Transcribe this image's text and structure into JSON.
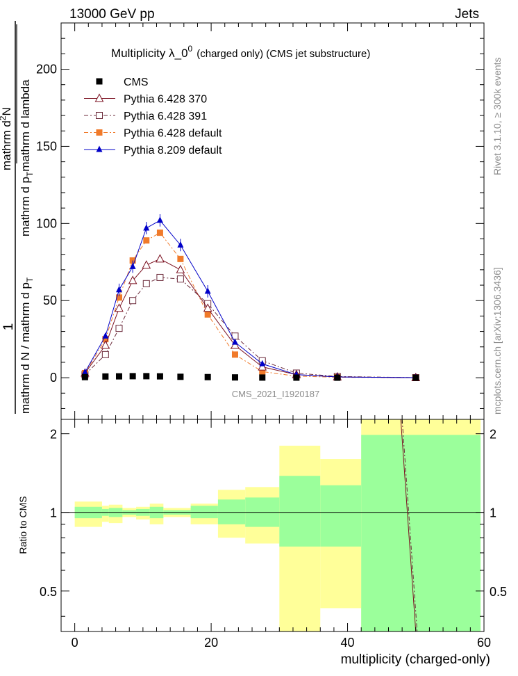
{
  "header": {
    "left": "13000 GeV pp",
    "right": "Jets"
  },
  "side_labels": {
    "top": "Rivet 3.1.10, ≥ 300k events",
    "bottom": "mcplots.cern.ch [arXiv:1306.3436]"
  },
  "chart_data": [
    {
      "type": "line",
      "title_main": "Multiplicity  λ_0",
      "title_sup": "0",
      "title_sub": "(charged only) (CMS jet substructure)",
      "watermark": "CMS_2021_I1920187",
      "ylabel_num": "1",
      "ylabel_den": "mathrm d N / mathrm d p",
      "ylabel_den_sub": "T",
      "ylabel_num2": "mathrm d",
      "ylabel_num2_sup": "2",
      "ylabel_num2_rest": "N",
      "ylabel_den2": "mathrm d p",
      "ylabel_den2_sub": "T",
      "ylabel_den2_rest": "mathrm d lambda",
      "xlim": [
        -2,
        60
      ],
      "ylim": [
        -27,
        230
      ],
      "yticks": [
        0,
        50,
        100,
        150,
        200
      ],
      "ytick_labels": [
        "0",
        "50",
        "100",
        "150",
        "200"
      ],
      "legend_position": "top-left",
      "series": [
        {
          "name": "CMS",
          "color": "#000000",
          "marker": "square-filled",
          "dash": "none",
          "x": [
            1.5,
            4.5,
            6.5,
            8.5,
            10.5,
            12.5,
            15.5,
            19.5,
            23.5,
            27.5,
            32.5,
            38.5,
            50
          ],
          "y": [
            0.4,
            0.8,
            0.9,
            1.0,
            1.0,
            0.9,
            0.6,
            0.4,
            0.2,
            0.1,
            0.05,
            0.02,
            0.002
          ]
        },
        {
          "name": "Pythia 6.428 370",
          "color": "#7b1020",
          "marker": "triangle-open",
          "dash": "none",
          "x": [
            1.5,
            4.5,
            6.5,
            8.5,
            10.5,
            12.5,
            15.5,
            19.5,
            23.5,
            27.5,
            32.5,
            38.5,
            50
          ],
          "y": [
            3,
            21,
            45,
            63,
            73,
            77,
            70,
            45,
            21,
            7,
            2,
            0.5,
            0.05
          ]
        },
        {
          "name": "Pythia 6.428 391",
          "color": "#6b2a3a",
          "marker": "square-open",
          "dash": "6,3,2,3",
          "x": [
            1.5,
            4.5,
            6.5,
            8.5,
            10.5,
            12.5,
            15.5,
            19.5,
            23.5,
            27.5,
            32.5,
            38.5,
            50
          ],
          "y": [
            2,
            15,
            32,
            50,
            61,
            65,
            64,
            48,
            27,
            11,
            3,
            0.8,
            0.05
          ]
        },
        {
          "name": "Pythia 6.428 default",
          "color": "#f07a2a",
          "marker": "square-filled",
          "dash": "6,3,2,3",
          "x": [
            1.5,
            4.5,
            6.5,
            8.5,
            10.5,
            12.5,
            15.5,
            19.5,
            23.5,
            27.5,
            32.5,
            38.5,
            50
          ],
          "y": [
            3,
            25,
            52,
            76,
            89,
            94,
            77,
            41,
            15,
            4,
            1,
            0.3,
            0.02
          ]
        },
        {
          "name": "Pythia 8.209 default",
          "color": "#0000c8",
          "marker": "triangle-filled",
          "dash": "none",
          "x": [
            1.5,
            4.5,
            6.5,
            8.5,
            10.5,
            12.5,
            15.5,
            19.5,
            23.5,
            27.5,
            32.5,
            38.5,
            50
          ],
          "y": [
            3.5,
            27,
            57,
            72,
            97,
            102,
            86,
            56,
            23,
            9,
            2,
            0.5,
            0.05
          ]
        }
      ]
    },
    {
      "type": "area",
      "ylabel": "Ratio to CMS",
      "xlabel": "multiplicity (charged-only)",
      "xlim": [
        -2,
        60
      ],
      "ylim": [
        0.35,
        2.27
      ],
      "xticks": [
        0,
        20,
        40,
        60
      ],
      "xtick_labels": [
        "0",
        "20",
        "40",
        "60"
      ],
      "yticks": [
        0.5,
        1,
        2
      ],
      "ytick_labels": [
        "0.5",
        "1",
        "2"
      ],
      "band_colors": {
        "inner": "#9bff9b",
        "outer": "#ffff99"
      },
      "bins": [
        {
          "x0": 0,
          "x1": 4,
          "inner": [
            0.95,
            1.05
          ],
          "outer": [
            0.88,
            1.1
          ]
        },
        {
          "x0": 4,
          "x1": 5,
          "inner": [
            0.97,
            1.03
          ],
          "outer": [
            0.92,
            1.06
          ]
        },
        {
          "x0": 5,
          "x1": 7,
          "inner": [
            0.96,
            1.04
          ],
          "outer": [
            0.91,
            1.07
          ]
        },
        {
          "x0": 7,
          "x1": 9,
          "inner": [
            0.98,
            1.02
          ],
          "outer": [
            0.96,
            1.04
          ]
        },
        {
          "x0": 9,
          "x1": 11,
          "inner": [
            0.97,
            1.03
          ],
          "outer": [
            0.94,
            1.05
          ]
        },
        {
          "x0": 11,
          "x1": 13,
          "inner": [
            0.95,
            1.05
          ],
          "outer": [
            0.9,
            1.08
          ]
        },
        {
          "x0": 13,
          "x1": 17,
          "inner": [
            0.98,
            1.02
          ],
          "outer": [
            0.96,
            1.04
          ]
        },
        {
          "x0": 17,
          "x1": 21,
          "inner": [
            0.95,
            1.06
          ],
          "outer": [
            0.9,
            1.08
          ]
        },
        {
          "x0": 21,
          "x1": 25,
          "inner": [
            0.9,
            1.12
          ],
          "outer": [
            0.8,
            1.22
          ]
        },
        {
          "x0": 25,
          "x1": 30,
          "inner": [
            0.88,
            1.14
          ],
          "outer": [
            0.76,
            1.25
          ]
        },
        {
          "x0": 30,
          "x1": 36,
          "inner": [
            0.74,
            1.38
          ],
          "outer": [
            0.35,
            1.8
          ]
        },
        {
          "x0": 36,
          "x1": 42,
          "inner": [
            0.74,
            1.27
          ],
          "outer": [
            0.43,
            1.6
          ]
        },
        {
          "x0": 42,
          "x1": 59.5,
          "inner": [
            0.35,
            1.98
          ],
          "outer": [
            0.35,
            2.27
          ]
        }
      ],
      "reference_line": 1,
      "ratio_lines": [
        {
          "color": "#7b1020",
          "dash": "none",
          "x": [
            47.8,
            50.0
          ],
          "y": [
            2.27,
            0.35
          ]
        },
        {
          "color": "#6b2a3a",
          "dash": "6,3,2,3",
          "x": [
            48.0,
            50.2
          ],
          "y": [
            2.27,
            0.35
          ]
        }
      ]
    }
  ]
}
